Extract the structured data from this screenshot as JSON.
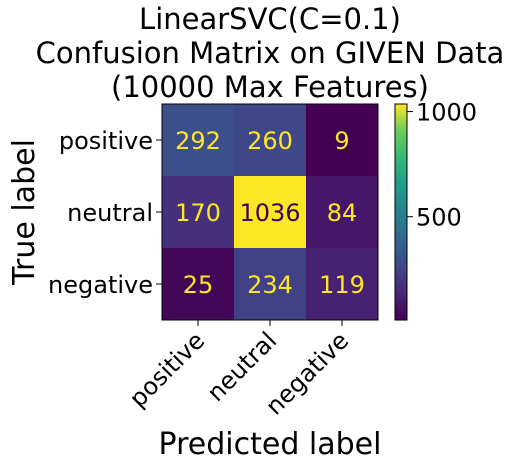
{
  "chart_data": {
    "type": "heatmap",
    "title_lines": [
      "LinearSVC(C=0.1)",
      "Confusion Matrix on GIVEN Data",
      "(10000 Max Features)"
    ],
    "xlabel": "Predicted label",
    "ylabel": "True label",
    "x_categories": [
      "positive",
      "neutral",
      "negative"
    ],
    "y_categories": [
      "positive",
      "neutral",
      "negative"
    ],
    "matrix": [
      [
        292,
        260,
        9
      ],
      [
        170,
        1036,
        84
      ],
      [
        25,
        234,
        119
      ]
    ],
    "colormap": "viridis",
    "value_range": [
      9,
      1036
    ],
    "colorbar_ticks": [
      500,
      1000
    ],
    "text_colors": {
      "low_cell": "#FDE725",
      "high_cell": "#440154"
    }
  }
}
